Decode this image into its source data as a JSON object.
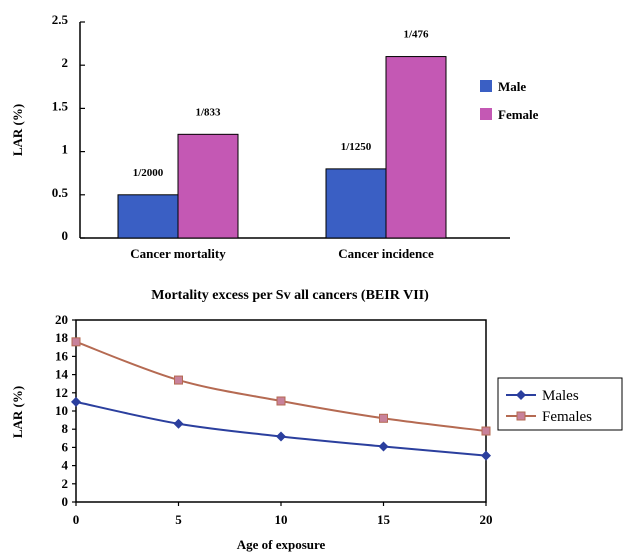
{
  "chart_data": [
    {
      "type": "bar",
      "title": "",
      "xlabel": "",
      "ylabel": "LAR (%)",
      "ylim": [
        0,
        2.5
      ],
      "yticks": [
        "0",
        "0.5",
        "1",
        "1.5",
        "2",
        "2.5"
      ],
      "ytick_values": [
        0,
        0.5,
        1,
        1.5,
        2,
        2.5
      ],
      "categories": [
        "Cancer mortality",
        "Cancer incidence"
      ],
      "series": [
        {
          "name": "Male",
          "color": "#3a5fc4",
          "values": [
            0.5,
            0.8
          ],
          "labels": [
            "1/2000",
            "1/1250"
          ]
        },
        {
          "name": "Female",
          "color": "#c458b4",
          "values": [
            1.2,
            2.1
          ],
          "labels": [
            "1/833",
            "1/476"
          ]
        }
      ],
      "legend": "right",
      "grid": false
    },
    {
      "type": "line",
      "title": "Mortality excess per Sv all cancers (BEIR VII)",
      "xlabel": "Age of exposure",
      "ylabel": "LAR (%)",
      "xlim": [
        0,
        20
      ],
      "ylim": [
        0,
        20
      ],
      "xticks": [
        "0",
        "5",
        "10",
        "15",
        "20"
      ],
      "xtick_values": [
        0,
        5,
        10,
        15,
        20
      ],
      "yticks": [
        "0",
        "2",
        "4",
        "6",
        "8",
        "10",
        "12",
        "14",
        "16",
        "18",
        "20"
      ],
      "ytick_values": [
        0,
        2,
        4,
        6,
        8,
        10,
        12,
        14,
        16,
        18,
        20
      ],
      "x": [
        0,
        5,
        10,
        15,
        20
      ],
      "series": [
        {
          "name": "Males",
          "color": "#2b3f9e",
          "marker": "diamond",
          "values": [
            11.0,
            8.6,
            7.2,
            6.1,
            5.1
          ]
        },
        {
          "name": "Females",
          "color": "#b56a52",
          "marker": "square",
          "values": [
            17.6,
            13.4,
            11.1,
            9.2,
            7.8
          ]
        }
      ],
      "legend": "right",
      "grid": false
    }
  ]
}
